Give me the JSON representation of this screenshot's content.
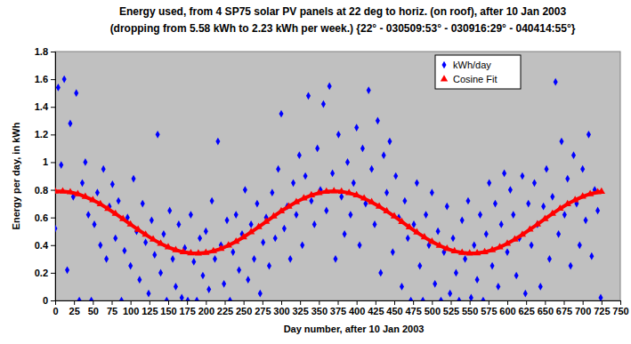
{
  "chart_data": {
    "type": "scatter",
    "title": [
      "Energy used, from 4 SP75 solar PV panels at 22 deg to horiz. (on roof), after 10 Jan 2003",
      "(dropping from 5.58 kWh to 2.23 kWh per week.) {22° - 030509:53° - 030916:29° - 040414:55°}"
    ],
    "x_label": "Day number, after 10 Jan 2003",
    "y_label": "Energy per day, in kWh",
    "xlim": [
      0,
      750
    ],
    "xticks": [
      0,
      25,
      50,
      75,
      100,
      125,
      150,
      175,
      200,
      225,
      250,
      275,
      300,
      325,
      350,
      375,
      400,
      425,
      450,
      475,
      500,
      525,
      550,
      575,
      600,
      625,
      650,
      675,
      700,
      725,
      750
    ],
    "ylim": [
      0,
      1.8
    ],
    "yticks": [
      0,
      0.2,
      0.4,
      0.6,
      0.8,
      1,
      1.2,
      1.4,
      1.6,
      1.8
    ],
    "grid": false,
    "legend": "top-right",
    "series": [
      {
        "name": "kWh/day",
        "color": "#0000ff",
        "marker": "diamond",
        "type": "scatter",
        "x": [
          0,
          4,
          8,
          12,
          16,
          20,
          24,
          28,
          32,
          36,
          40,
          44,
          48,
          52,
          56,
          60,
          64,
          68,
          72,
          76,
          80,
          84,
          88,
          92,
          96,
          100,
          104,
          108,
          112,
          116,
          120,
          124,
          128,
          132,
          136,
          140,
          144,
          148,
          152,
          156,
          160,
          164,
          168,
          172,
          176,
          180,
          184,
          188,
          192,
          196,
          200,
          204,
          208,
          212,
          216,
          220,
          224,
          228,
          232,
          236,
          240,
          244,
          248,
          252,
          256,
          260,
          264,
          268,
          272,
          276,
          280,
          284,
          288,
          292,
          296,
          300,
          304,
          308,
          312,
          316,
          320,
          324,
          328,
          332,
          336,
          340,
          344,
          348,
          352,
          356,
          360,
          364,
          368,
          372,
          376,
          380,
          384,
          388,
          392,
          396,
          400,
          404,
          408,
          412,
          416,
          420,
          424,
          428,
          432,
          436,
          440,
          444,
          448,
          452,
          456,
          460,
          464,
          468,
          472,
          476,
          480,
          484,
          488,
          492,
          496,
          500,
          504,
          508,
          512,
          516,
          520,
          524,
          528,
          532,
          536,
          540,
          544,
          548,
          552,
          556,
          560,
          564,
          568,
          572,
          576,
          580,
          584,
          588,
          592,
          596,
          600,
          604,
          608,
          612,
          616,
          620,
          624,
          628,
          632,
          636,
          640,
          644,
          648,
          652,
          656,
          660,
          664,
          668,
          672,
          676,
          680,
          684,
          688,
          692,
          696,
          700,
          704,
          708,
          712,
          716,
          720,
          724
        ],
        "values": [
          0.52,
          1.54,
          0.98,
          1.6,
          0.22,
          1.28,
          0.75,
          1.5,
          0,
          0.85,
          1,
          0.62,
          0,
          0.55,
          0.78,
          0.4,
          0.95,
          0.3,
          0.68,
          0.84,
          0.45,
          0.72,
          0,
          0.36,
          0.6,
          0.25,
          0.88,
          0.5,
          0.15,
          0.7,
          0.42,
          0.05,
          0.58,
          0.33,
          1.2,
          0.2,
          0.48,
          0,
          0.65,
          0.3,
          0.1,
          0.55,
          0.02,
          0.38,
          0,
          0.62,
          0.28,
          0,
          0.45,
          0.18,
          0.5,
          0.08,
          0.72,
          0.3,
          1.15,
          0.4,
          0.12,
          0.58,
          0,
          0.35,
          0.62,
          0.22,
          0.48,
          0.8,
          0.15,
          0.55,
          0.3,
          0.7,
          0.05,
          0.42,
          0.6,
          0.25,
          0.78,
          0.45,
          0.95,
          1.35,
          0.52,
          0.68,
          0.3,
          0.85,
          0.62,
          1.05,
          0.4,
          0.9,
          1.48,
          0.72,
          0.55,
          1.1,
          0.8,
          1.42,
          0.65,
          1.55,
          0.92,
          0.3,
          1.2,
          0.75,
          0.48,
          1,
          0.62,
          0.85,
          1.25,
          0.4,
          1.1,
          0.7,
          1.52,
          0.95,
          0.55,
          1.3,
          0.2,
          1.05,
          0.78,
          1.15,
          0.35,
          0.9,
          0.6,
          0.1,
          0.72,
          0.45,
          0,
          0.55,
          0.85,
          0.25,
          0,
          0.62,
          0.4,
          0.78,
          0.12,
          0.5,
          0,
          0.35,
          0.68,
          0.05,
          0.45,
          0.2,
          0,
          0.58,
          0.3,
          0.72,
          0.02,
          0.4,
          0.15,
          0.62,
          0,
          0.48,
          0.85,
          0.25,
          0.7,
          0.1,
          0.55,
          0.92,
          0.35,
          0.8,
          0.62,
          0.18,
          0.45,
          0.9,
          0.05,
          0.7,
          0.4,
          0.85,
          0.55,
          0.1,
          0.68,
          0.95,
          0.3,
          0.75,
          1.58,
          0.48,
          1.15,
          0.62,
          0.88,
          0.25,
          1.05,
          0.7,
          0.4,
          0.95,
          0.58,
          1.2,
          0.32,
          0.8,
          0.65,
          0.02
        ]
      },
      {
        "name": "Cosine Fit",
        "color": "#ff0000",
        "marker": "triangle",
        "type": "line",
        "x": [
          0,
          10,
          20,
          30,
          40,
          50,
          60,
          70,
          80,
          90,
          100,
          110,
          120,
          130,
          140,
          150,
          160,
          170,
          180,
          190,
          200,
          210,
          220,
          230,
          240,
          250,
          260,
          270,
          280,
          290,
          300,
          310,
          320,
          330,
          340,
          350,
          360,
          370,
          380,
          390,
          400,
          410,
          420,
          430,
          440,
          450,
          460,
          470,
          480,
          490,
          500,
          510,
          520,
          530,
          540,
          550,
          560,
          570,
          580,
          590,
          600,
          610,
          620,
          630,
          640,
          650,
          660,
          670,
          680,
          690,
          700,
          710,
          720,
          725
        ],
        "values": [
          0.789,
          0.789,
          0.783,
          0.77,
          0.75,
          0.726,
          0.697,
          0.663,
          0.627,
          0.589,
          0.55,
          0.512,
          0.476,
          0.441,
          0.411,
          0.385,
          0.365,
          0.35,
          0.342,
          0.34,
          0.345,
          0.357,
          0.374,
          0.398,
          0.426,
          0.458,
          0.494,
          0.531,
          0.57,
          0.608,
          0.646,
          0.68,
          0.712,
          0.739,
          0.761,
          0.777,
          0.787,
          0.79,
          0.787,
          0.777,
          0.761,
          0.738,
          0.711,
          0.68,
          0.645,
          0.608,
          0.569,
          0.53,
          0.493,
          0.457,
          0.425,
          0.397,
          0.374,
          0.356,
          0.345,
          0.34,
          0.342,
          0.35,
          0.365,
          0.385,
          0.411,
          0.442,
          0.476,
          0.513,
          0.551,
          0.59,
          0.627,
          0.664,
          0.697,
          0.726,
          0.751,
          0.77,
          0.783,
          0.787
        ]
      }
    ]
  }
}
